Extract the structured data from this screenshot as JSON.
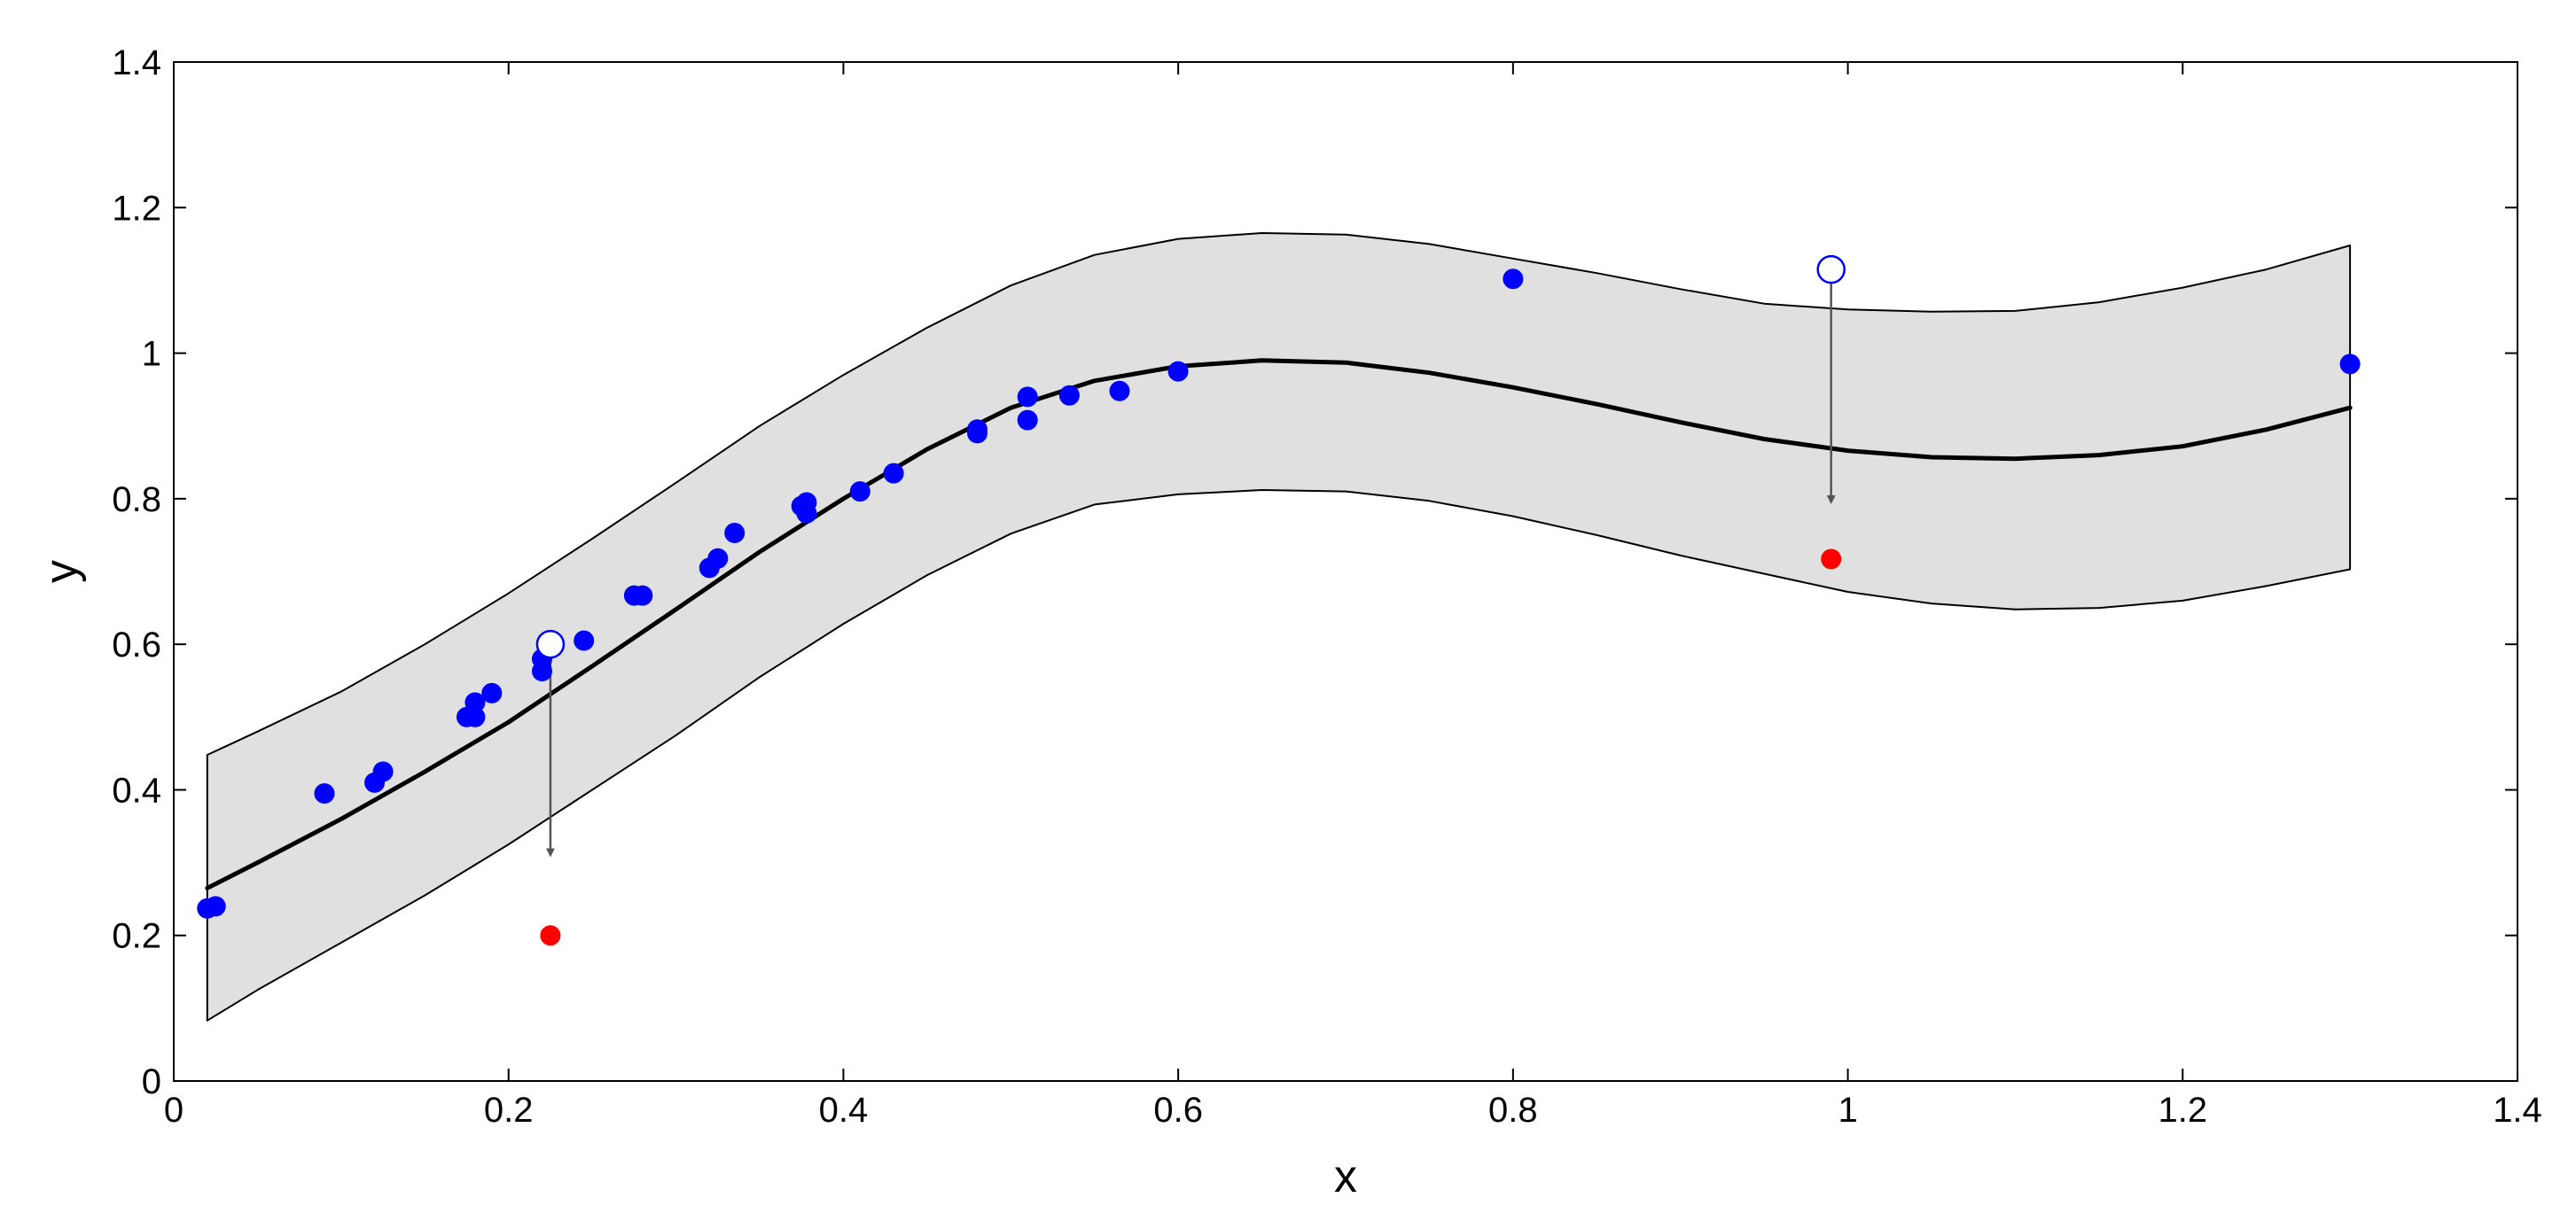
{
  "chart_data": {
    "type": "scatter",
    "title": "",
    "xlabel": "x",
    "ylabel": "y",
    "xlim": [
      0,
      1.4
    ],
    "ylim": [
      0,
      1.4
    ],
    "xticks": [
      0,
      0.2,
      0.4,
      0.6,
      0.8,
      1,
      1.2,
      1.4
    ],
    "yticks": [
      0,
      0.2,
      0.4,
      0.6,
      0.8,
      1,
      1.2,
      1.4
    ],
    "xtick_labels": [
      "0",
      "0.2",
      "0.4",
      "0.6",
      "0.8",
      "1",
      "1.2",
      "1.4"
    ],
    "ytick_labels": [
      "0",
      "0.2",
      "0.4",
      "0.6",
      "0.8",
      "1",
      "1.2",
      "1.4"
    ],
    "grid": false,
    "legend": false,
    "colors": {
      "band_fill": "#e0e0e0",
      "band_edge": "#000000",
      "fit_line": "#000000",
      "points": "#0000ff",
      "moved_points": "#ff0000",
      "arrows": "#555555"
    },
    "fit_curve": {
      "x": [
        0.02,
        0.05,
        0.1,
        0.15,
        0.2,
        0.25,
        0.3,
        0.35,
        0.4,
        0.45,
        0.5,
        0.55,
        0.6,
        0.65,
        0.7,
        0.75,
        0.8,
        0.85,
        0.9,
        0.95,
        1.0,
        1.05,
        1.1,
        1.15,
        1.2,
        1.25,
        1.3
      ],
      "y": [
        0.265,
        0.3,
        0.36,
        0.425,
        0.493,
        0.57,
        0.648,
        0.727,
        0.8,
        0.868,
        0.925,
        0.962,
        0.982,
        0.99,
        0.987,
        0.973,
        0.953,
        0.93,
        0.905,
        0.882,
        0.866,
        0.857,
        0.855,
        0.86,
        0.872,
        0.895,
        0.925
      ]
    },
    "confidence_band": {
      "x": [
        0.02,
        0.05,
        0.1,
        0.15,
        0.2,
        0.25,
        0.3,
        0.35,
        0.4,
        0.45,
        0.5,
        0.55,
        0.6,
        0.65,
        0.7,
        0.75,
        0.8,
        0.85,
        0.9,
        0.95,
        1.0,
        1.05,
        1.1,
        1.15,
        1.2,
        1.25,
        1.3
      ],
      "upper": [
        0.448,
        0.48,
        0.535,
        0.6,
        0.67,
        0.745,
        0.822,
        0.9,
        0.97,
        1.035,
        1.093,
        1.135,
        1.157,
        1.165,
        1.163,
        1.15,
        1.13,
        1.11,
        1.088,
        1.068,
        1.06,
        1.057,
        1.058,
        1.07,
        1.09,
        1.115,
        1.148
      ],
      "lower": [
        0.083,
        0.125,
        0.19,
        0.255,
        0.325,
        0.4,
        0.475,
        0.555,
        0.628,
        0.695,
        0.752,
        0.792,
        0.806,
        0.812,
        0.81,
        0.797,
        0.776,
        0.75,
        0.722,
        0.697,
        0.672,
        0.656,
        0.648,
        0.65,
        0.66,
        0.68,
        0.703
      ]
    },
    "series": [
      {
        "marker": "filled-circle",
        "color": "#0000ff",
        "x": [
          0.02,
          0.025,
          0.09,
          0.12,
          0.125,
          0.175,
          0.18,
          0.18,
          0.19,
          0.22,
          0.22,
          0.245,
          0.275,
          0.28,
          0.32,
          0.325,
          0.335,
          0.375,
          0.378,
          0.378,
          0.41,
          0.43,
          0.48,
          0.48,
          0.51,
          0.51,
          0.535,
          0.565,
          0.6,
          0.8,
          1.3
        ],
        "y": [
          0.237,
          0.24,
          0.395,
          0.41,
          0.425,
          0.5,
          0.52,
          0.5,
          0.533,
          0.58,
          0.563,
          0.605,
          0.667,
          0.667,
          0.705,
          0.718,
          0.753,
          0.79,
          0.795,
          0.78,
          0.81,
          0.835,
          0.895,
          0.89,
          0.94,
          0.908,
          0.942,
          0.948,
          0.975,
          1.102,
          0.985
        ]
      },
      {
        "marker": "open-circle",
        "color": "#0000ff",
        "x": [
          0.225,
          0.99
        ],
        "y": [
          0.6,
          1.115
        ]
      },
      {
        "marker": "filled-circle",
        "color": "#ff0000",
        "x": [
          0.225,
          0.99
        ],
        "y": [
          0.2,
          0.717
        ]
      }
    ],
    "annotations": [
      {
        "type": "arrow",
        "x": 0.225,
        "y_from": 0.585,
        "y_to": 0.31
      },
      {
        "type": "arrow",
        "x": 0.99,
        "y_from": 1.1,
        "y_to": 0.795
      }
    ]
  }
}
